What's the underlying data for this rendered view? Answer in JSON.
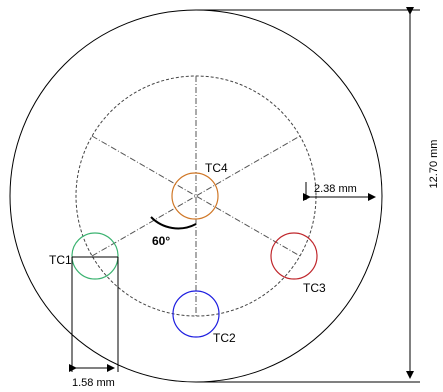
{
  "thermocouples": [
    {
      "label": "TC1",
      "color": "#3cb371"
    },
    {
      "label": "TC2",
      "color": "#1f1fe0"
    },
    {
      "label": "TC3",
      "color": "#c0282d"
    },
    {
      "label": "TC4",
      "color": "#d07828"
    }
  ],
  "dimensions": {
    "diameter": "12.70 mm",
    "edge_offset": "2.38 mm",
    "hole_diameter": "1.58 mm",
    "angle": "60°"
  }
}
